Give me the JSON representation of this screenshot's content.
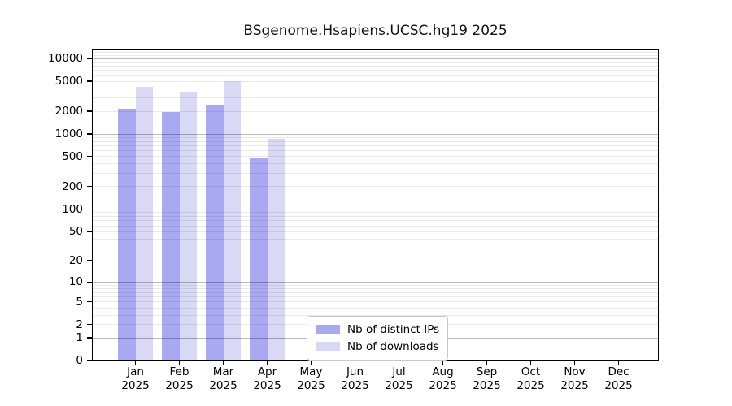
{
  "title": "BSgenome.Hsapiens.UCSC.hg19 2025",
  "chart_data": {
    "type": "bar",
    "title": "BSgenome.Hsapiens.UCSC.hg19 2025",
    "year": "2025",
    "categories": [
      "Jan",
      "Feb",
      "Mar",
      "Apr",
      "May",
      "Jun",
      "Jul",
      "Aug",
      "Sep",
      "Oct",
      "Nov",
      "Dec"
    ],
    "series": [
      {
        "name": "Nb of distinct IPs",
        "color": "#a9a9f1",
        "values": [
          2100,
          1900,
          2360,
          480,
          0,
          0,
          0,
          0,
          0,
          0,
          0,
          0
        ]
      },
      {
        "name": "Nb of downloads",
        "color": "#d9d9f6",
        "values": [
          4100,
          3560,
          4880,
          840,
          0,
          0,
          0,
          0,
          0,
          0,
          0,
          0
        ]
      }
    ],
    "yscale": "log1p",
    "yticks": [
      0,
      1,
      2,
      5,
      10,
      20,
      50,
      100,
      200,
      500,
      1000,
      2000,
      5000,
      10000
    ],
    "ylim": [
      0,
      13100
    ],
    "xlabel": "",
    "ylabel": "",
    "grid": "on",
    "legend_position": "lower center"
  },
  "colors": {
    "major_grid": "#b5b5b5",
    "minor_grid": "#ececec",
    "spine": "#000000",
    "background": "#ffffff"
  }
}
